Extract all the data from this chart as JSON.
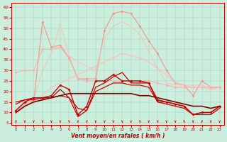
{
  "xlabel": "Vent moyen/en rafales ( km/h )",
  "bg_color": "#cceedd",
  "x": [
    0,
    1,
    2,
    3,
    4,
    5,
    6,
    7,
    8,
    9,
    10,
    11,
    12,
    13,
    14,
    15,
    16,
    17,
    18,
    19,
    20,
    21,
    22,
    23
  ],
  "lines": [
    {
      "y": [
        10,
        15,
        15,
        53,
        41,
        42,
        36,
        26,
        26,
        26,
        49,
        57,
        58,
        57,
        51,
        44,
        38,
        30,
        24,
        23,
        18,
        25,
        22,
        22
      ],
      "color": "#ff8888",
      "alpha": 0.8,
      "lw": 0.9,
      "marker": "D",
      "ms": 2.0
    },
    {
      "y": [
        29,
        30,
        30,
        40,
        40,
        41,
        36,
        26,
        25,
        25,
        25,
        25,
        25,
        25,
        25,
        25,
        24,
        23,
        22,
        22,
        22,
        22,
        22,
        22
      ],
      "color": "#ffaaaa",
      "alpha": 0.8,
      "lw": 0.9,
      "marker": "D",
      "ms": 2.0
    },
    {
      "y": [
        10,
        14,
        16,
        30,
        38,
        52,
        37,
        34,
        32,
        30,
        45,
        51,
        53,
        51,
        47,
        39,
        31,
        24,
        23,
        23,
        23,
        23,
        21,
        22
      ],
      "color": "#ffbbbb",
      "alpha": 0.7,
      "lw": 0.9,
      "marker": null,
      "ms": 0
    },
    {
      "y": [
        10,
        14,
        16,
        18,
        22,
        24,
        26,
        28,
        30,
        32,
        34,
        36,
        38,
        37,
        36,
        34,
        31,
        28,
        24,
        23,
        22,
        22,
        21,
        22
      ],
      "color": "#ffbbbb",
      "alpha": 0.6,
      "lw": 1.4,
      "marker": null,
      "ms": 0
    },
    {
      "y": [
        11,
        15,
        17,
        17,
        18,
        23,
        21,
        9,
        13,
        25,
        25,
        28,
        25,
        25,
        25,
        24,
        16,
        15,
        14,
        13,
        9,
        10,
        10,
        13
      ],
      "color": "#cc0000",
      "alpha": 1.0,
      "lw": 1.0,
      "marker": "D",
      "ms": 2.0
    },
    {
      "y": [
        14,
        16,
        16,
        17,
        17,
        18,
        17,
        12,
        11,
        20,
        22,
        24,
        24,
        23,
        23,
        22,
        15,
        14,
        13,
        12,
        9,
        9,
        9,
        12
      ],
      "color": "#cc0000",
      "alpha": 1.0,
      "lw": 0.9,
      "marker": null,
      "ms": 0
    },
    {
      "y": [
        15,
        16,
        17,
        17,
        17,
        21,
        17,
        8,
        11,
        22,
        24,
        27,
        29,
        24,
        24,
        24,
        15,
        15,
        14,
        13,
        9,
        10,
        10,
        13
      ],
      "color": "#cc0000",
      "alpha": 1.0,
      "lw": 0.9,
      "marker": null,
      "ms": 0
    },
    {
      "y": [
        10,
        13,
        15,
        16,
        17,
        18,
        19,
        19,
        19,
        19,
        19,
        19,
        19,
        19,
        18,
        18,
        17,
        16,
        15,
        14,
        13,
        13,
        12,
        13
      ],
      "color": "#880000",
      "alpha": 1.0,
      "lw": 1.2,
      "marker": null,
      "ms": 0
    }
  ],
  "ylim": [
    4,
    62
  ],
  "xlim": [
    -0.5,
    23.5
  ],
  "yticks": [
    5,
    10,
    15,
    20,
    25,
    30,
    35,
    40,
    45,
    50,
    55,
    60
  ]
}
